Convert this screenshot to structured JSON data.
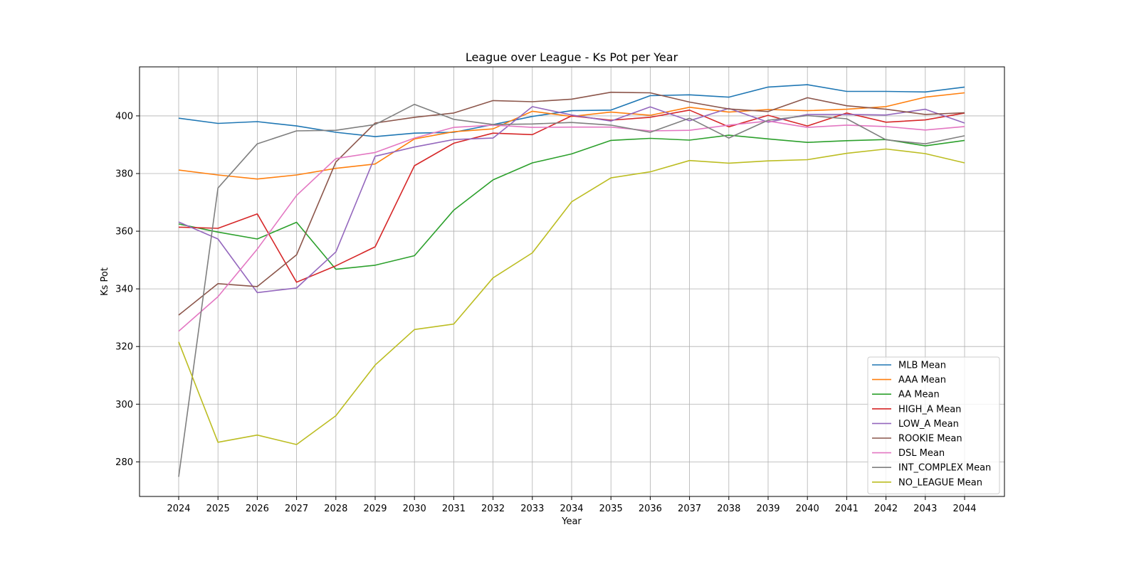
{
  "chart_data": {
    "type": "line",
    "title": "League over League - Ks Pot per Year",
    "xlabel": "Year",
    "ylabel": "Ks Pot",
    "grid": true,
    "legend_position": "lower-right",
    "x": [
      "2024",
      "2025",
      "2026",
      "2027",
      "2028",
      "2029",
      "2030",
      "2031",
      "2032",
      "2033",
      "2034",
      "2035",
      "2036",
      "2037",
      "2038",
      "2039",
      "2040",
      "2041",
      "2042",
      "2043",
      "2044"
    ],
    "yticks": [
      280,
      300,
      320,
      340,
      360,
      380,
      400
    ],
    "ylim": [
      268,
      417
    ],
    "series": [
      {
        "name": "MLB Mean",
        "color": "#1f77b4",
        "values": [
          399.2,
          397.4,
          398.0,
          396.5,
          394.3,
          392.8,
          394.0,
          394.3,
          397.0,
          399.8,
          401.8,
          402.0,
          407.0,
          407.3,
          406.5,
          410.0,
          410.8,
          408.5,
          408.5,
          408.3,
          410.0
        ]
      },
      {
        "name": "AAA Mean",
        "color": "#ff7f0e",
        "values": [
          381.2,
          379.5,
          378.1,
          379.5,
          381.8,
          383.3,
          392.0,
          394.5,
          395.5,
          401.6,
          399.8,
          401.3,
          400.2,
          403.0,
          401.3,
          402.2,
          401.8,
          402.3,
          403.2,
          406.5,
          408.0
        ]
      },
      {
        "name": "AA Mean",
        "color": "#2ca02c",
        "values": [
          362.5,
          359.7,
          357.3,
          363.1,
          346.8,
          348.2,
          351.5,
          367.3,
          377.8,
          383.7,
          386.8,
          391.5,
          392.2,
          391.6,
          393.3,
          392.0,
          390.8,
          391.4,
          391.8,
          389.6,
          391.5
        ]
      },
      {
        "name": "HIGH_A Mean",
        "color": "#d62728",
        "values": [
          361.4,
          361.0,
          366.0,
          342.3,
          348.0,
          354.6,
          382.7,
          390.5,
          394.0,
          393.5,
          400.0,
          398.5,
          399.5,
          402.0,
          396.2,
          400.2,
          396.5,
          401.0,
          397.8,
          398.6,
          401.0
        ]
      },
      {
        "name": "LOW_A Mean",
        "color": "#9467bd",
        "values": [
          363.2,
          357.3,
          338.7,
          340.3,
          352.8,
          386.0,
          389.2,
          391.8,
          392.3,
          403.2,
          400.3,
          398.2,
          403.1,
          398.3,
          402.6,
          397.8,
          400.5,
          400.5,
          400.3,
          402.3,
          397.5
        ]
      },
      {
        "name": "ROOKIE Mean",
        "color": "#8c564b",
        "values": [
          330.9,
          341.8,
          340.8,
          351.8,
          384.0,
          397.5,
          399.5,
          401.0,
          405.3,
          404.9,
          405.8,
          408.2,
          408.0,
          404.8,
          402.4,
          401.5,
          406.3,
          403.5,
          402.3,
          400.5,
          401.1
        ]
      },
      {
        "name": "DSL Mean",
        "color": "#e377c2",
        "values": [
          325.3,
          337.3,
          353.8,
          372.4,
          385.2,
          387.3,
          392.3,
          396.0,
          396.8,
          396.0,
          396.1,
          396.1,
          394.8,
          395.0,
          396.8,
          398.2,
          396.0,
          396.8,
          396.3,
          395.1,
          396.3
        ]
      },
      {
        "name": "INT_COMPLEX Mean",
        "color": "#7f7f7f",
        "values": [
          274.8,
          375.0,
          390.3,
          394.8,
          395.0,
          397.0,
          404.0,
          398.8,
          397.0,
          397.2,
          397.7,
          396.8,
          394.3,
          399.2,
          392.3,
          398.5,
          400.1,
          399.0,
          391.7,
          390.3,
          393.1
        ]
      },
      {
        "name": "NO_LEAGUE Mean",
        "color": "#bcbd22",
        "values": [
          321.6,
          286.8,
          289.3,
          286.0,
          296.0,
          313.6,
          325.9,
          327.8,
          343.8,
          352.5,
          370.2,
          378.5,
          380.6,
          384.5,
          383.6,
          384.4,
          384.8,
          387.0,
          388.5,
          386.9,
          383.7
        ]
      }
    ]
  }
}
